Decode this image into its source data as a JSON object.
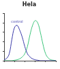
{
  "chart_data": {
    "type": "line",
    "title": "Hela",
    "x": [
      0,
      5,
      10,
      15,
      20,
      25,
      30,
      35,
      40,
      45,
      50,
      55,
      60,
      65,
      70,
      75,
      80,
      85,
      90,
      95,
      100
    ],
    "series": [
      {
        "name": "control",
        "color": "#3a3aa8",
        "values": [
          2,
          5,
          15,
          45,
          70,
          75,
          65,
          50,
          30,
          15,
          8,
          4,
          2,
          1,
          0,
          0,
          0,
          0,
          0,
          0,
          0
        ]
      },
      {
        "color": "#3cc47a",
        "values": [
          0,
          0,
          0,
          0,
          1,
          2,
          4,
          8,
          15,
          30,
          55,
          75,
          85,
          80,
          60,
          35,
          15,
          6,
          2,
          1,
          0
        ]
      }
    ],
    "xlim": [
      0,
      100
    ],
    "ylim": [
      0,
      100
    ],
    "xticks": [
      0,
      20,
      40,
      60,
      80,
      100
    ],
    "yticks": [
      0,
      20,
      40,
      60,
      80,
      100
    ],
    "grid": false,
    "tick_labels": false
  }
}
